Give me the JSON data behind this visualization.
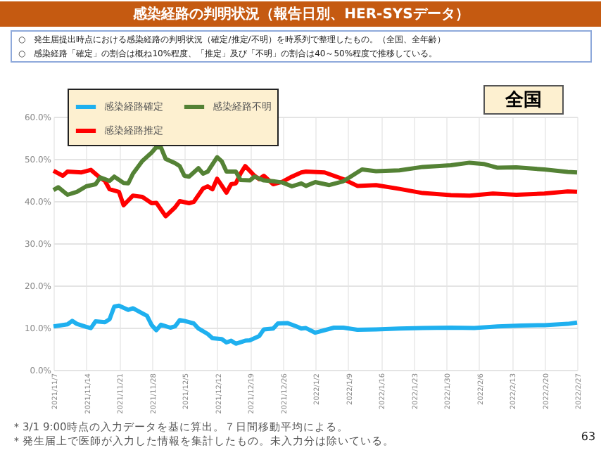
{
  "chart_data": {
    "type": "line",
    "title": "感染経路の判明状況（報告日別、HER-SYSデータ）",
    "subtitle": [
      "○　発生届提出時点における感染経路の判明状況（確定/推定/不明）を時系列で整理したもの。（全国、全年齢）",
      "○　感染経路「確定」の割合は概ね10%程度、「推定」及び「不明」の割合は40～50%程度で推移している。"
    ],
    "series": [
      {
        "name": "感染経路確定",
        "color": "#1fb0ef",
        "x": [
          "2021-11-07",
          "2021-11-10",
          "2021-11-11",
          "2021-11-12",
          "2021-11-14",
          "2021-11-15",
          "2021-11-16",
          "2021-11-18",
          "2021-11-19",
          "2021-11-20",
          "2021-11-21",
          "2021-11-23",
          "2021-11-24",
          "2021-11-26",
          "2021-11-27",
          "2021-11-28",
          "2021-11-29",
          "2021-11-30",
          "2021-12-02",
          "2021-12-03",
          "2021-12-04",
          "2021-12-05",
          "2021-12-07",
          "2021-12-08",
          "2021-12-10",
          "2021-12-11",
          "2021-12-13",
          "2021-12-14",
          "2021-12-15",
          "2021-12-16",
          "2021-12-18",
          "2021-12-19",
          "2021-12-21",
          "2021-12-22",
          "2021-12-24",
          "2021-12-25",
          "2021-12-27",
          "2021-12-29",
          "2021-12-30",
          "2021-12-31",
          "2022-01-02",
          "2022-01-06",
          "2022-01-08",
          "2022-01-11",
          "2022-01-15",
          "2022-01-20",
          "2022-01-25",
          "2022-01-31",
          "2022-02-05",
          "2022-02-10",
          "2022-02-15",
          "2022-02-20",
          "2022-02-25",
          "2022-02-27"
        ],
        "values": [
          10.3,
          10.8,
          11.6,
          10.9,
          10.2,
          9.9,
          11.5,
          11.3,
          12.0,
          15.0,
          15.2,
          14.2,
          14.6,
          13.4,
          12.8,
          10.6,
          9.4,
          10.7,
          10.0,
          10.3,
          11.8,
          11.6,
          11.0,
          9.8,
          8.5,
          7.5,
          7.3,
          6.5,
          6.9,
          6.2,
          6.9,
          7.0,
          8.0,
          9.6,
          9.8,
          11.0,
          11.1,
          10.3,
          9.8,
          9.9,
          8.8,
          10.0,
          10.0,
          9.5,
          9.6,
          9.8,
          9.9,
          10.0,
          9.9,
          10.3,
          10.5,
          10.6,
          10.9,
          11.2
        ]
      },
      {
        "name": "感染経路推定",
        "color": "#ff0000",
        "x": [
          "2021-11-07",
          "2021-11-09",
          "2021-11-10",
          "2021-11-13",
          "2021-11-15",
          "2021-11-17",
          "2021-11-18",
          "2021-11-19",
          "2021-11-21",
          "2021-11-22",
          "2021-11-24",
          "2021-11-26",
          "2021-11-28",
          "2021-11-29",
          "2021-11-30",
          "2021-12-01",
          "2021-12-03",
          "2021-12-04",
          "2021-12-06",
          "2021-12-07",
          "2021-12-09",
          "2021-12-10",
          "2021-12-11",
          "2021-12-12",
          "2021-12-14",
          "2021-12-15",
          "2021-12-16",
          "2021-12-17",
          "2021-12-18",
          "2021-12-20",
          "2021-12-21",
          "2021-12-22",
          "2021-12-24",
          "2021-12-26",
          "2021-12-28",
          "2021-12-30",
          "2021-12-31",
          "2022-01-04",
          "2022-01-08",
          "2022-01-11",
          "2022-01-15",
          "2022-01-20",
          "2022-01-25",
          "2022-01-31",
          "2022-02-04",
          "2022-02-09",
          "2022-02-14",
          "2022-02-20",
          "2022-02-25",
          "2022-02-27"
        ],
        "values": [
          47.2,
          46.0,
          47.0,
          46.8,
          47.4,
          45.5,
          44.8,
          42.8,
          42.2,
          39.0,
          41.3,
          41.0,
          39.5,
          39.6,
          38.0,
          36.4,
          38.5,
          40.0,
          39.5,
          39.8,
          43.0,
          43.5,
          42.8,
          45.3,
          42.0,
          44.0,
          44.2,
          46.5,
          48.3,
          46.0,
          45.2,
          46.0,
          44.0,
          44.6,
          45.8,
          46.8,
          47.0,
          46.8,
          45.2,
          43.6,
          43.8,
          42.9,
          41.9,
          41.4,
          41.3,
          41.8,
          41.5,
          41.8,
          42.3,
          42.2
        ]
      },
      {
        "name": "感染経路不明",
        "color": "#548235",
        "x": [
          "2021-11-07",
          "2021-11-08",
          "2021-11-10",
          "2021-11-12",
          "2021-11-14",
          "2021-11-16",
          "2021-11-17",
          "2021-11-19",
          "2021-11-20",
          "2021-11-22",
          "2021-11-23",
          "2021-11-24",
          "2021-11-26",
          "2021-11-28",
          "2021-11-29",
          "2021-11-30",
          "2021-12-01",
          "2021-12-03",
          "2021-12-04",
          "2021-12-05",
          "2021-12-06",
          "2021-12-08",
          "2021-12-09",
          "2021-12-10",
          "2021-12-12",
          "2021-12-13",
          "2021-12-14",
          "2021-12-16",
          "2021-12-17",
          "2021-12-19",
          "2021-12-20",
          "2021-12-22",
          "2021-12-24",
          "2021-12-26",
          "2021-12-28",
          "2021-12-30",
          "2021-12-31",
          "2022-01-02",
          "2022-01-05",
          "2022-01-08",
          "2022-01-12",
          "2022-01-15",
          "2022-01-20",
          "2022-01-25",
          "2022-01-31",
          "2022-02-04",
          "2022-02-07",
          "2022-02-10",
          "2022-02-14",
          "2022-02-20",
          "2022-02-25",
          "2022-02-27"
        ],
        "values": [
          42.6,
          43.3,
          41.5,
          42.2,
          43.5,
          44.0,
          45.6,
          44.8,
          45.8,
          44.3,
          44.2,
          46.5,
          49.5,
          51.5,
          52.8,
          52.7,
          50.0,
          49.0,
          48.3,
          46.0,
          45.8,
          47.8,
          46.5,
          47.0,
          50.4,
          49.4,
          47.0,
          47.0,
          45.0,
          44.9,
          45.8,
          44.9,
          44.7,
          44.4,
          43.5,
          44.2,
          43.6,
          44.5,
          43.8,
          44.7,
          47.5,
          47.1,
          47.3,
          48.1,
          48.5,
          49.1,
          48.8,
          47.9,
          48.0,
          47.5,
          46.9,
          46.8
        ]
      }
    ],
    "xlim": [
      "2021-11-07",
      "2022-02-27"
    ],
    "xticks": [
      {
        "value": "2021-11-07",
        "label": "2021/11/7"
      },
      {
        "value": "2021-11-14",
        "label": "2021/11/14"
      },
      {
        "value": "2021-11-21",
        "label": "2021/11/21"
      },
      {
        "value": "2021-11-28",
        "label": "2021/11/28"
      },
      {
        "value": "2021-12-05",
        "label": "2021/12/5"
      },
      {
        "value": "2021-12-12",
        "label": "2021/12/12"
      },
      {
        "value": "2021-12-19",
        "label": "2021/12/19"
      },
      {
        "value": "2021-12-26",
        "label": "2021/12/26"
      },
      {
        "value": "2022-01-02",
        "label": "2022/1/2"
      },
      {
        "value": "2022-01-09",
        "label": "2022/1/9"
      },
      {
        "value": "2022-01-16",
        "label": "2022/1/16"
      },
      {
        "value": "2022-01-23",
        "label": "2022/1/23"
      },
      {
        "value": "2022-01-30",
        "label": "2022/1/30"
      },
      {
        "value": "2022-02-06",
        "label": "2022/2/6"
      },
      {
        "value": "2022-02-13",
        "label": "2022/2/13"
      },
      {
        "value": "2022-02-20",
        "label": "2022/2/20"
      },
      {
        "value": "2022-02-27",
        "label": "2022/2/27"
      }
    ],
    "ylim": [
      0,
      60
    ],
    "yticks": [
      {
        "value": 0,
        "label": "0.0%"
      },
      {
        "value": 10,
        "label": "10.0%"
      },
      {
        "value": 20,
        "label": "20.0%"
      },
      {
        "value": 30,
        "label": "30.0%"
      },
      {
        "value": 40,
        "label": "40.0%"
      },
      {
        "value": 50,
        "label": "50.0%"
      },
      {
        "value": 60,
        "label": "60.0%"
      }
    ],
    "grid": true,
    "legend": "top left",
    "marker": "none",
    "line_style": "solid",
    "annotations": [
      "全国",
      "＊3/1 9:00時点の入力データを基に算出。７日間移動平均による。",
      "＊発生届上で医師が入力した情報を集計したもの。未入力分は除いている。",
      "63"
    ]
  }
}
